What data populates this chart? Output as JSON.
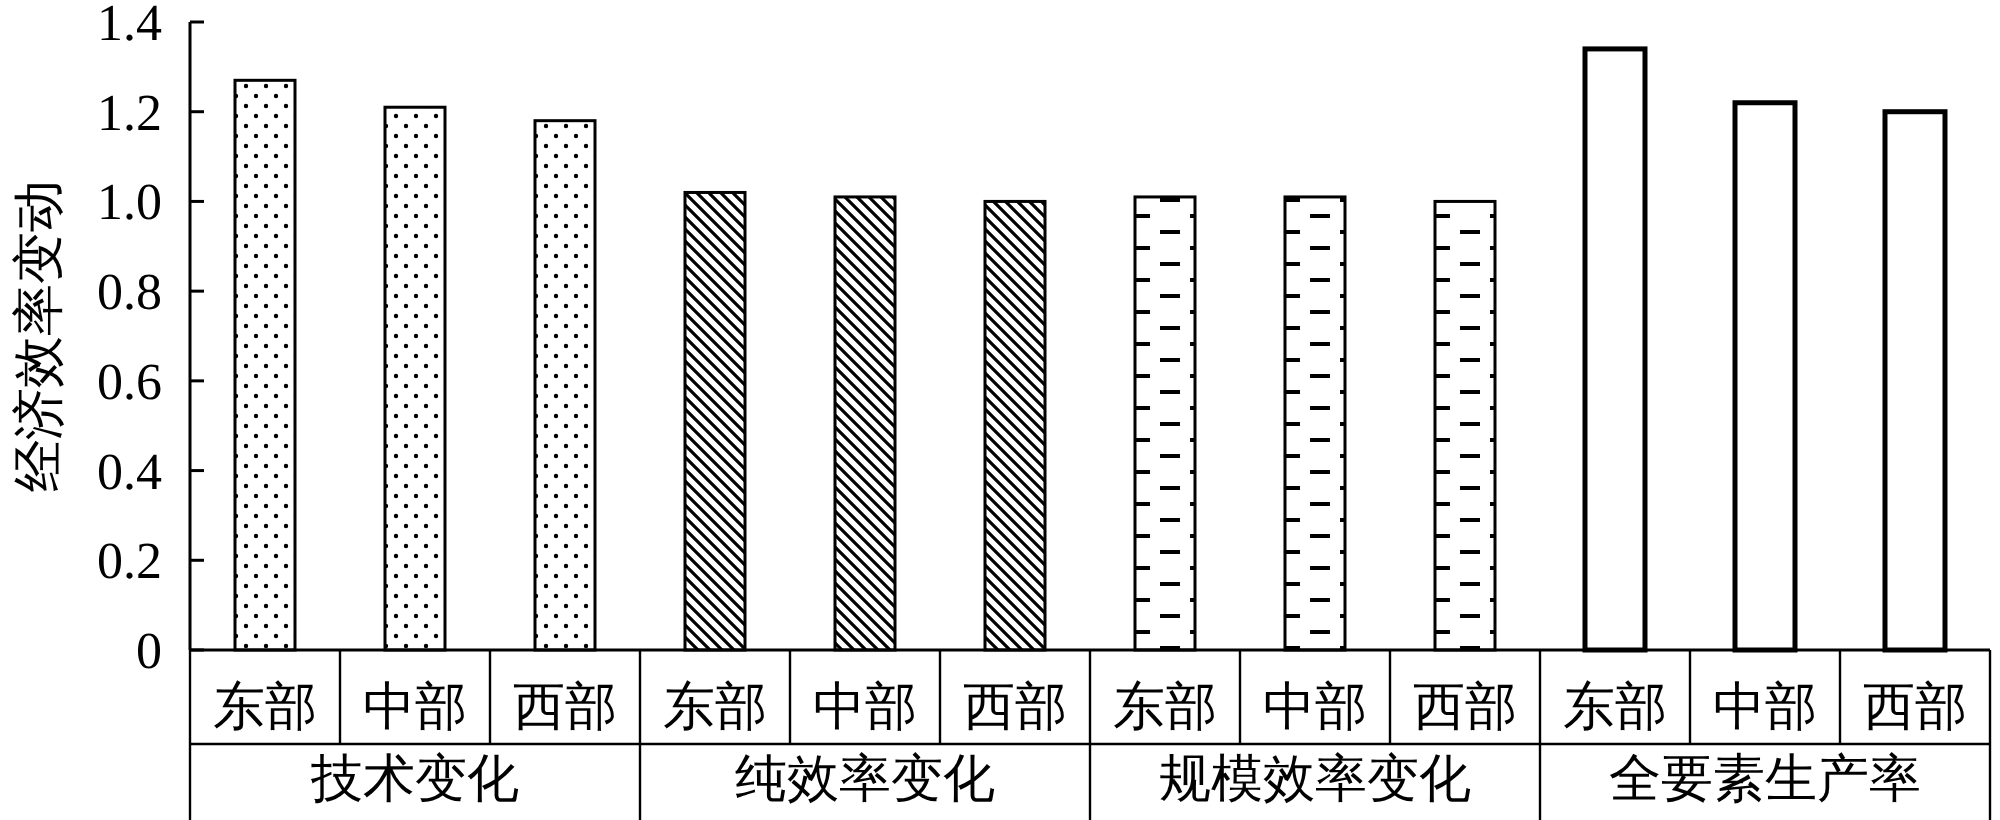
{
  "chart_data": {
    "type": "bar",
    "ylabel": "经济效率变动",
    "categories": [
      "东部",
      "中部",
      "西部",
      "东部",
      "中部",
      "西部",
      "东部",
      "中部",
      "西部",
      "东部",
      "中部",
      "西部"
    ],
    "series": [
      {
        "color": "#000000",
        "values": [
          1.27,
          1.21,
          1.18,
          null,
          null,
          null,
          null,
          null,
          null,
          null,
          null,
          null
        ]
      },
      {
        "color": "#000000",
        "values": [
          null,
          null,
          null,
          1.02,
          1.01,
          1.0,
          null,
          null,
          null,
          null,
          null,
          null
        ]
      },
      {
        "color": "#000000",
        "values": [
          null,
          null,
          null,
          null,
          null,
          null,
          1.01,
          1.01,
          1.0,
          null,
          null,
          null
        ]
      },
      {
        "color": "#ffffff",
        "values": [
          null,
          null,
          null,
          null,
          null,
          null,
          null,
          null,
          null,
          1.34,
          1.22,
          1.2
        ]
      }
    ],
    "ylim": [
      0,
      1.4
    ],
    "yticks": [
      0,
      {
        "value": 0.2,
        "label": "0.2"
      },
      {
        "value": 0.4,
        "label": "0.4"
      },
      {
        "value": 0.6,
        "label": "0.6"
      },
      {
        "value": 0.8,
        "label": "0.8"
      },
      {
        "value": 1,
        "label": "1.0"
      },
      {
        "value": 1.2,
        "label": "1.2"
      },
      {
        "value": 1.4,
        "label": "1.4"
      }
    ],
    "annotations": [
      "技术变化",
      "纯效率变化",
      "规模效率变化",
      "全要素生产率"
    ],
    "grid": false
  }
}
